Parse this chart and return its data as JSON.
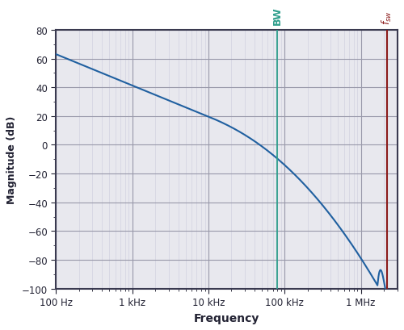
{
  "title": "",
  "xlabel": "Frequency",
  "ylabel": "Magnitude (dB)",
  "xlim": [
    100,
    3000000
  ],
  "ylim": [
    -100,
    80
  ],
  "yticks": [
    -100,
    -80,
    -60,
    -40,
    -20,
    0,
    20,
    40,
    60,
    80
  ],
  "xtick_labels": [
    "100 Hz",
    "1 kHz",
    "10 kHz",
    "100 kHz",
    "1 MHz"
  ],
  "xtick_positions": [
    100,
    1000,
    10000,
    100000,
    1000000
  ],
  "bw_freq": 80000,
  "fsw_freq": 2200000,
  "bw_color": "#2e9e8c",
  "fsw_color": "#8b1a1a",
  "line_color": "#2060a0",
  "grid_major_color": "#9999aa",
  "grid_minor_color": "#ccccdd",
  "bg_color": "#e8e8ee",
  "border_color": "#3a3a50",
  "fig_bg": "#ffffff",
  "bw_label": "BW",
  "fsw_label": "f_sw",
  "gain_start": 63,
  "f_start": 100,
  "f_cross": 80000,
  "f_sw": 2200000
}
